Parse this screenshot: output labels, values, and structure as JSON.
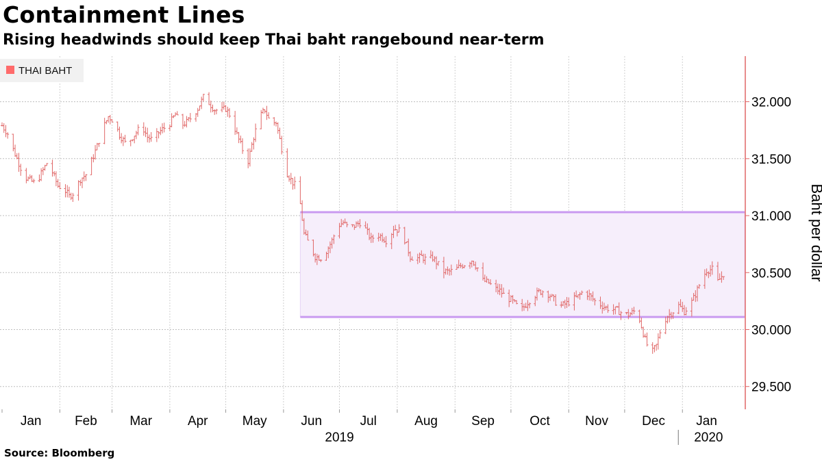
{
  "title": "Containment Lines",
  "subtitle": "Rising headwinds should keep Thai baht rangebound near-term",
  "source": "Source:  Bloomberg",
  "chart_data": {
    "type": "ohlc",
    "legend": [
      "THAI BAHT"
    ],
    "ylabel": "Baht per dollar",
    "ylim": [
      29.3,
      32.4
    ],
    "yticks": [
      29.5,
      30.0,
      30.5,
      31.0,
      31.5,
      32.0
    ],
    "ytick_labels": [
      "29.500",
      "30.000",
      "30.500",
      "31.000",
      "31.500",
      "32.000"
    ],
    "x_range": [
      "2019-01-01",
      "2020-01-27"
    ],
    "months": [
      {
        "label": "Jan",
        "date": "2019-01-01"
      },
      {
        "label": "Feb",
        "date": "2019-02-01"
      },
      {
        "label": "Mar",
        "date": "2019-03-01"
      },
      {
        "label": "Apr",
        "date": "2019-04-01"
      },
      {
        "label": "May",
        "date": "2019-05-01"
      },
      {
        "label": "Jun",
        "date": "2019-06-01"
      },
      {
        "label": "Jul",
        "date": "2019-07-01"
      },
      {
        "label": "Aug",
        "date": "2019-08-01"
      },
      {
        "label": "Sep",
        "date": "2019-09-01"
      },
      {
        "label": "Oct",
        "date": "2019-10-01"
      },
      {
        "label": "Nov",
        "date": "2019-11-01"
      },
      {
        "label": "Dec",
        "date": "2019-12-01"
      },
      {
        "label": "Jan",
        "date": "2020-01-01"
      }
    ],
    "years": [
      {
        "label": "2019",
        "date": "2019-07-01"
      },
      {
        "label": "2020",
        "date": "2020-01-15"
      }
    ],
    "year_divider": "2020-01-01",
    "range_band": {
      "start": "2019-06-10",
      "end": "2020-01-27",
      "low": 30.11,
      "high": 31.03
    },
    "series": [
      {
        "name": "THAI BAHT",
        "color": "#e06666",
        "points": [
          [
            "2019-01-01",
            31.79
          ],
          [
            "2019-01-04",
            31.72
          ],
          [
            "2019-01-07",
            31.58
          ],
          [
            "2019-01-10",
            31.46
          ],
          [
            "2019-01-13",
            31.34
          ],
          [
            "2019-01-16",
            31.31
          ],
          [
            "2019-01-19",
            31.28
          ],
          [
            "2019-01-22",
            31.37
          ],
          [
            "2019-01-25",
            31.46
          ],
          [
            "2019-01-28",
            31.38
          ],
          [
            "2019-01-31",
            31.26
          ],
          [
            "2019-02-03",
            31.24
          ],
          [
            "2019-02-06",
            31.17
          ],
          [
            "2019-02-09",
            31.21
          ],
          [
            "2019-02-12",
            31.32
          ],
          [
            "2019-02-15",
            31.36
          ],
          [
            "2019-02-18",
            31.48
          ],
          [
            "2019-02-21",
            31.61
          ],
          [
            "2019-02-24",
            31.76
          ],
          [
            "2019-02-27",
            31.87
          ],
          [
            "2019-03-02",
            31.83
          ],
          [
            "2019-03-05",
            31.71
          ],
          [
            "2019-03-08",
            31.64
          ],
          [
            "2019-03-11",
            31.67
          ],
          [
            "2019-03-14",
            31.73
          ],
          [
            "2019-03-17",
            31.79
          ],
          [
            "2019-03-20",
            31.69
          ],
          [
            "2019-03-23",
            31.66
          ],
          [
            "2019-03-26",
            31.73
          ],
          [
            "2019-03-29",
            31.77
          ],
          [
            "2019-04-01",
            31.81
          ],
          [
            "2019-04-04",
            31.89
          ],
          [
            "2019-04-07",
            31.79
          ],
          [
            "2019-04-10",
            31.82
          ],
          [
            "2019-04-13",
            31.87
          ],
          [
            "2019-04-16",
            31.94
          ],
          [
            "2019-04-19",
            32.04
          ],
          [
            "2019-04-22",
            31.99
          ],
          [
            "2019-04-25",
            31.93
          ],
          [
            "2019-04-28",
            31.92
          ],
          [
            "2019-05-01",
            31.94
          ],
          [
            "2019-05-04",
            31.86
          ],
          [
            "2019-05-07",
            31.71
          ],
          [
            "2019-05-10",
            31.58
          ],
          [
            "2019-05-13",
            31.48
          ],
          [
            "2019-05-16",
            31.69
          ],
          [
            "2019-05-19",
            31.86
          ],
          [
            "2019-05-22",
            31.93
          ],
          [
            "2019-05-25",
            31.81
          ],
          [
            "2019-05-28",
            31.82
          ],
          [
            "2019-05-31",
            31.59
          ],
          [
            "2019-06-03",
            31.37
          ],
          [
            "2019-06-06",
            31.29
          ],
          [
            "2019-06-09",
            31.23
          ],
          [
            "2019-06-12",
            30.84
          ],
          [
            "2019-06-15",
            30.74
          ],
          [
            "2019-06-18",
            30.64
          ],
          [
            "2019-06-21",
            30.63
          ],
          [
            "2019-06-24",
            30.69
          ],
          [
            "2019-06-27",
            30.78
          ],
          [
            "2019-06-30",
            30.91
          ],
          [
            "2019-07-03",
            30.94
          ],
          [
            "2019-07-06",
            30.89
          ],
          [
            "2019-07-09",
            30.91
          ],
          [
            "2019-07-12",
            30.94
          ],
          [
            "2019-07-15",
            30.88
          ],
          [
            "2019-07-18",
            30.79
          ],
          [
            "2019-07-21",
            30.84
          ],
          [
            "2019-07-24",
            30.81
          ],
          [
            "2019-07-27",
            30.77
          ],
          [
            "2019-07-30",
            30.89
          ],
          [
            "2019-08-02",
            30.87
          ],
          [
            "2019-08-05",
            30.79
          ],
          [
            "2019-08-08",
            30.64
          ],
          [
            "2019-08-11",
            30.62
          ],
          [
            "2019-08-14",
            30.64
          ],
          [
            "2019-08-17",
            30.61
          ],
          [
            "2019-08-20",
            30.63
          ],
          [
            "2019-08-23",
            30.57
          ],
          [
            "2019-08-26",
            30.51
          ],
          [
            "2019-08-29",
            30.51
          ],
          [
            "2019-09-01",
            30.52
          ],
          [
            "2019-09-04",
            30.56
          ],
          [
            "2019-09-07",
            30.58
          ],
          [
            "2019-09-10",
            30.61
          ],
          [
            "2019-09-13",
            30.54
          ],
          [
            "2019-09-16",
            30.43
          ],
          [
            "2019-09-19",
            30.41
          ],
          [
            "2019-09-22",
            30.36
          ],
          [
            "2019-09-25",
            30.34
          ],
          [
            "2019-09-28",
            30.29
          ],
          [
            "2019-10-01",
            30.26
          ],
          [
            "2019-10-04",
            30.21
          ],
          [
            "2019-10-07",
            30.18
          ],
          [
            "2019-10-10",
            30.24
          ],
          [
            "2019-10-13",
            30.29
          ],
          [
            "2019-10-16",
            30.33
          ],
          [
            "2019-10-19",
            30.34
          ],
          [
            "2019-10-22",
            30.3
          ],
          [
            "2019-10-25",
            30.24
          ],
          [
            "2019-10-28",
            30.21
          ],
          [
            "2019-10-31",
            30.23
          ],
          [
            "2019-11-03",
            30.26
          ],
          [
            "2019-11-06",
            30.29
          ],
          [
            "2019-11-09",
            30.34
          ],
          [
            "2019-11-12",
            30.3
          ],
          [
            "2019-11-15",
            30.25
          ],
          [
            "2019-11-18",
            30.22
          ],
          [
            "2019-11-21",
            30.19
          ],
          [
            "2019-11-24",
            30.18
          ],
          [
            "2019-11-27",
            30.17
          ],
          [
            "2019-11-30",
            30.14
          ],
          [
            "2019-12-03",
            30.13
          ],
          [
            "2019-12-06",
            30.16
          ],
          [
            "2019-12-09",
            30.09
          ],
          [
            "2019-12-12",
            29.91
          ],
          [
            "2019-12-15",
            29.78
          ],
          [
            "2019-12-18",
            29.86
          ],
          [
            "2019-12-21",
            30.04
          ],
          [
            "2019-12-24",
            30.12
          ],
          [
            "2019-12-27",
            30.16
          ],
          [
            "2019-12-30",
            30.21
          ],
          [
            "2020-01-02",
            30.16
          ],
          [
            "2020-01-05",
            30.21
          ],
          [
            "2020-01-08",
            30.31
          ],
          [
            "2020-01-11",
            30.43
          ],
          [
            "2020-01-14",
            30.52
          ],
          [
            "2020-01-17",
            30.53
          ],
          [
            "2020-01-20",
            30.42
          ],
          [
            "2020-01-23",
            30.49
          ]
        ]
      }
    ]
  }
}
